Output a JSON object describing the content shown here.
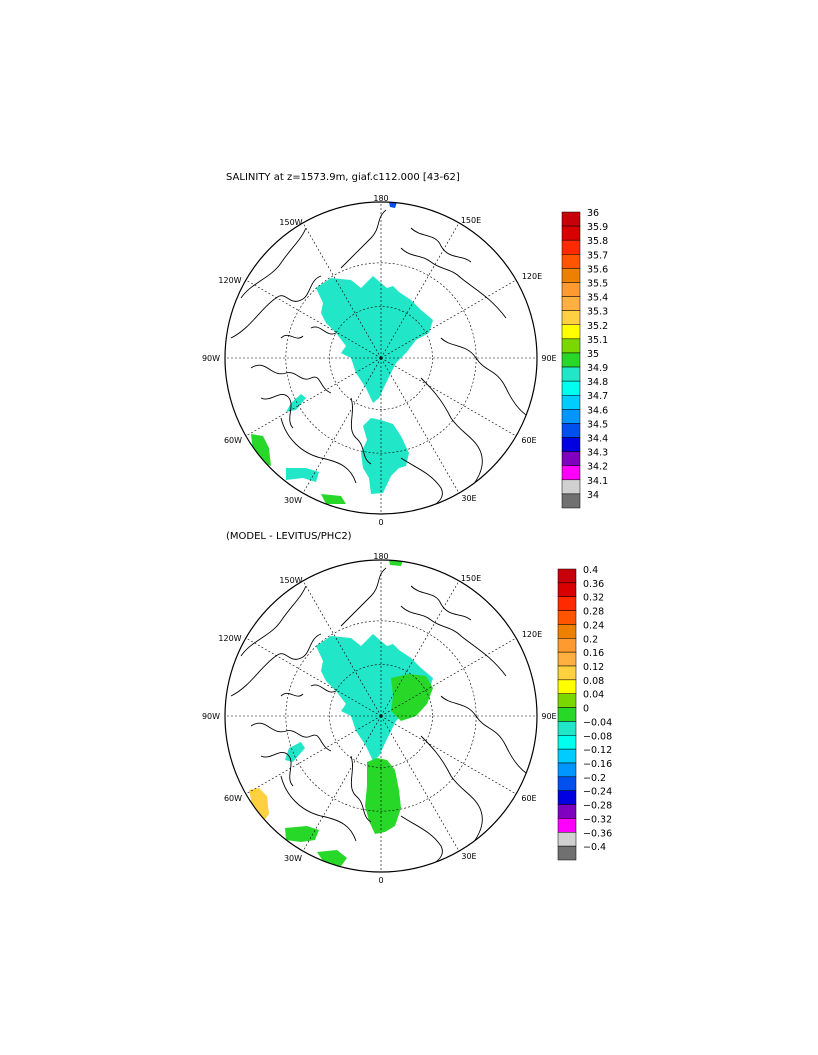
{
  "maps": [
    {
      "title": "SALINITY at z=1573.9m, giaf.c112.000 [43-62]",
      "longitude_labels": [
        "180",
        "150E",
        "120E",
        "90E",
        "60E",
        "30E",
        "0",
        "30W",
        "60W",
        "90W",
        "120W",
        "150W"
      ],
      "colorbar": {
        "labels": [
          "36",
          "35.9",
          "35.8",
          "35.7",
          "35.6",
          "35.5",
          "35.4",
          "35.3",
          "35.2",
          "35.1",
          "35",
          "34.9",
          "34.8",
          "34.7",
          "34.6",
          "34.5",
          "34.4",
          "34.3",
          "34.2",
          "34.1",
          "34"
        ],
        "colors": [
          "#c8000a",
          "#d80000",
          "#ff2a00",
          "#ff5500",
          "#ee8000",
          "#ff9a30",
          "#ffb040",
          "#ffd040",
          "#ffff00",
          "#7ad800",
          "#28d828",
          "#22e6c8",
          "#00ffee",
          "#00ccff",
          "#0096ff",
          "#0050f0",
          "#0000e0",
          "#8000c0",
          "#ff00ff",
          "#d0d0d0",
          "#707070"
        ]
      }
    },
    {
      "title": "(MODEL - LEVITUS/PHC2)",
      "longitude_labels": [
        "180",
        "150E",
        "120E",
        "90E",
        "60E",
        "30E",
        "0",
        "30W",
        "60W",
        "90W",
        "120W",
        "150W"
      ],
      "colorbar": {
        "labels": [
          "0.4",
          "0.36",
          "0.32",
          "0.28",
          "0.24",
          "0.2",
          "0.16",
          "0.12",
          "0.08",
          "0.04",
          "0",
          "−0.04",
          "−0.08",
          "−0.12",
          "−0.16",
          "−0.2",
          "−0.24",
          "−0.28",
          "−0.32",
          "−0.36",
          "−0.4"
        ],
        "colors": [
          "#c8000a",
          "#d80000",
          "#ff2a00",
          "#ff5500",
          "#ee8000",
          "#ff9a30",
          "#ffb040",
          "#ffd040",
          "#ffff00",
          "#7ad800",
          "#28d828",
          "#22e6c8",
          "#00ffee",
          "#00ccff",
          "#0096ff",
          "#0050f0",
          "#0000e0",
          "#8000c0",
          "#ff00ff",
          "#d0d0d0",
          "#707070"
        ]
      }
    }
  ]
}
